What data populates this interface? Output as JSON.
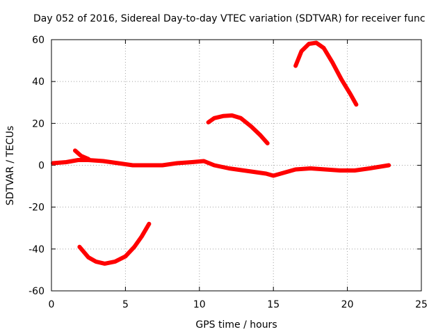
{
  "chart_data": {
    "type": "line",
    "title": "Day 052 of 2016, Sidereal Day-to-day VTEC variation (SDTVAR) for receiver func",
    "xlabel": "GPS time / hours",
    "ylabel": "SDTVAR / TECUs",
    "xlim": [
      0,
      25
    ],
    "ylim": [
      -60,
      60
    ],
    "xticks": [
      0,
      5,
      10,
      15,
      20,
      25
    ],
    "yticks": [
      -60,
      -40,
      -20,
      0,
      20,
      40,
      60
    ],
    "xtick_labels": [
      "0",
      "5",
      "10",
      "15",
      "20",
      "25"
    ],
    "ytick_labels": [
      "-60",
      "-40",
      "-20",
      "0",
      "20",
      "40",
      "60"
    ],
    "grid": true,
    "series_color": "#ff0000",
    "series": [
      {
        "name": "near-zero trace",
        "points": [
          [
            0.1,
            1
          ],
          [
            1.0,
            1.5
          ],
          [
            1.8,
            2.5
          ],
          [
            2.5,
            2.5
          ],
          [
            3.5,
            2
          ],
          [
            4.5,
            1
          ],
          [
            5.5,
            0
          ],
          [
            6.5,
            0
          ],
          [
            7.5,
            0
          ],
          [
            8.5,
            1
          ],
          [
            9.5,
            1.5
          ],
          [
            10.3,
            2
          ],
          [
            11.0,
            0
          ],
          [
            12.0,
            -1.5
          ],
          [
            13.5,
            -3
          ],
          [
            14.5,
            -4
          ],
          [
            15.0,
            -5
          ],
          [
            15.5,
            -4
          ],
          [
            16.5,
            -2
          ],
          [
            17.5,
            -1.5
          ],
          [
            18.5,
            -2
          ],
          [
            19.5,
            -2.5
          ],
          [
            20.5,
            -2.5
          ],
          [
            21.5,
            -1.5
          ],
          [
            22.8,
            0
          ]
        ]
      },
      {
        "name": "early spike",
        "points": [
          [
            1.6,
            7
          ],
          [
            2.0,
            4.5
          ],
          [
            2.5,
            3
          ]
        ]
      },
      {
        "name": "dip arc",
        "points": [
          [
            1.9,
            -39
          ],
          [
            2.5,
            -44
          ],
          [
            3.0,
            -46
          ],
          [
            3.6,
            -47
          ],
          [
            4.3,
            -46
          ],
          [
            5.0,
            -43.5
          ],
          [
            5.6,
            -39
          ],
          [
            6.1,
            -34
          ],
          [
            6.6,
            -28
          ]
        ]
      },
      {
        "name": "mid arc",
        "points": [
          [
            10.6,
            20.5
          ],
          [
            11.0,
            22.5
          ],
          [
            11.6,
            23.5
          ],
          [
            12.2,
            23.8
          ],
          [
            12.8,
            22.5
          ],
          [
            13.5,
            18.5
          ],
          [
            14.1,
            14.5
          ],
          [
            14.6,
            10.5
          ]
        ]
      },
      {
        "name": "late arc",
        "points": [
          [
            16.5,
            47.5
          ],
          [
            16.9,
            54.5
          ],
          [
            17.4,
            58
          ],
          [
            17.9,
            58.5
          ],
          [
            18.4,
            56
          ],
          [
            19.0,
            49
          ],
          [
            19.6,
            41
          ],
          [
            20.2,
            34
          ],
          [
            20.6,
            29
          ]
        ]
      }
    ]
  }
}
